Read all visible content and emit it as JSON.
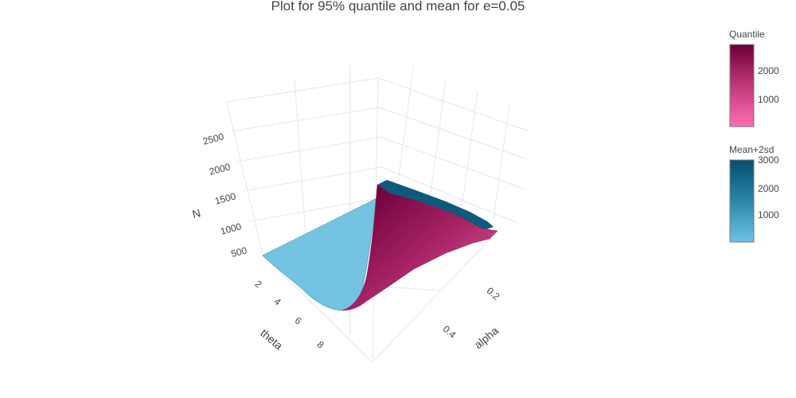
{
  "chart_data": {
    "type": "surface3d",
    "title": "Plot for 95% quantile and mean for e=0.05",
    "axes": {
      "x": {
        "label": "theta",
        "ticks": [
          "2",
          "4",
          "6",
          "8"
        ]
      },
      "y": {
        "label": "alpha",
        "ticks": [
          "0.2",
          "0.4"
        ]
      },
      "z": {
        "label": "N",
        "ticks": [
          "500",
          "1000",
          "1500",
          "2000",
          "2500"
        ]
      }
    },
    "series": [
      {
        "name": "Quantile",
        "colorscale": [
          "#ff6eb4",
          "#c2377a",
          "#6b0038"
        ],
        "colorbar": {
          "title": "Quantile",
          "ticks": [
            "1000",
            "2000"
          ]
        }
      },
      {
        "name": "Mean+2sd",
        "colorscale": [
          "#6ec3e6",
          "#2a86a8",
          "#064e6e"
        ],
        "colorbar": {
          "title": "Mean+2sd",
          "ticks": [
            "1000",
            "2000",
            "3000"
          ]
        }
      }
    ]
  }
}
